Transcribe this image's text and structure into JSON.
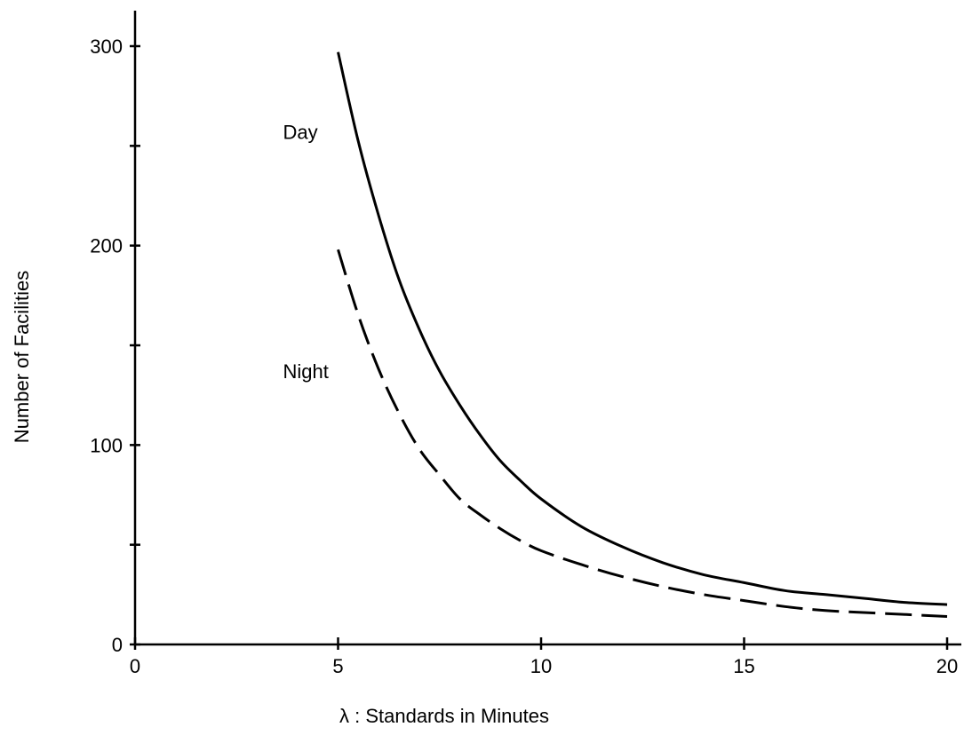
{
  "chart_data": {
    "type": "line",
    "title": "",
    "xlabel": "λ : Standards in Minutes",
    "ylabel": "Number of Facilities",
    "xlim": [
      0,
      20
    ],
    "ylim": [
      0,
      300
    ],
    "x_ticks": [
      0,
      5,
      10,
      15,
      20
    ],
    "x_tick_labels": [
      "0",
      "5",
      "10",
      "15",
      "20"
    ],
    "y_ticks": [
      0,
      50,
      100,
      150,
      200,
      250,
      300
    ],
    "y_tick_labels": [
      "0",
      "",
      "100",
      "",
      "200",
      "",
      "300"
    ],
    "grid": false,
    "series": [
      {
        "name": "Day",
        "line_style": "solid",
        "x": [
          5,
          5.5,
          6,
          6.5,
          7,
          7.5,
          8,
          8.5,
          9,
          9.5,
          10,
          11,
          12,
          13,
          14,
          15,
          16,
          17,
          18,
          19,
          20
        ],
        "y": [
          297,
          252,
          215,
          183,
          158,
          137,
          120,
          105,
          92,
          82,
          73,
          59,
          49,
          41,
          35,
          31,
          27,
          25,
          23,
          21,
          20
        ]
      },
      {
        "name": "Night",
        "line_style": "dashed",
        "x": [
          5,
          5.5,
          6,
          6.5,
          7,
          7.5,
          8,
          8.5,
          9,
          9.5,
          10,
          11,
          12,
          13,
          14,
          15,
          16,
          17,
          18,
          19,
          20
        ],
        "y": [
          198,
          165,
          138,
          116,
          98,
          85,
          73,
          65,
          58,
          52,
          47,
          40,
          34,
          29,
          25,
          22,
          19,
          17,
          16,
          15,
          14
        ]
      }
    ]
  }
}
